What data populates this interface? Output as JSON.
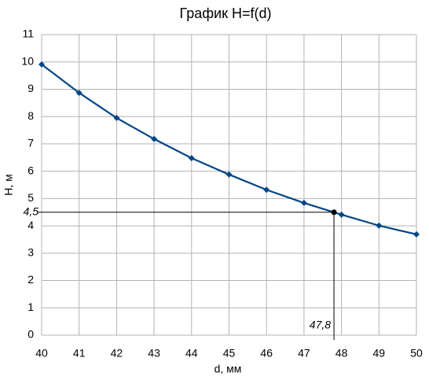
{
  "chart_data": {
    "type": "line",
    "title": "График H=f(d)",
    "x_label": "d, мм",
    "y_label": "H, м",
    "x": [
      40,
      41,
      42,
      43,
      44,
      45,
      46,
      47,
      48,
      49,
      50
    ],
    "series": [
      {
        "color": "#004586",
        "values": [
          9.91,
          8.87,
          7.95,
          7.18,
          6.48,
          5.88,
          5.32,
          4.84,
          4.41,
          4.01,
          3.69
        ]
      }
    ],
    "xlim": [
      40,
      50
    ],
    "ylim": [
      0,
      11
    ],
    "xticks": [
      40,
      41,
      42,
      43,
      44,
      45,
      46,
      47,
      48,
      49,
      50
    ],
    "yticks": [
      0,
      1,
      2,
      3,
      4,
      5,
      6,
      7,
      8,
      9,
      10,
      11
    ],
    "grid": true,
    "annotation": {
      "x": {
        "value": 47.8,
        "label": "47,8"
      },
      "y": {
        "value": 4.5,
        "label": "4,5"
      }
    }
  }
}
